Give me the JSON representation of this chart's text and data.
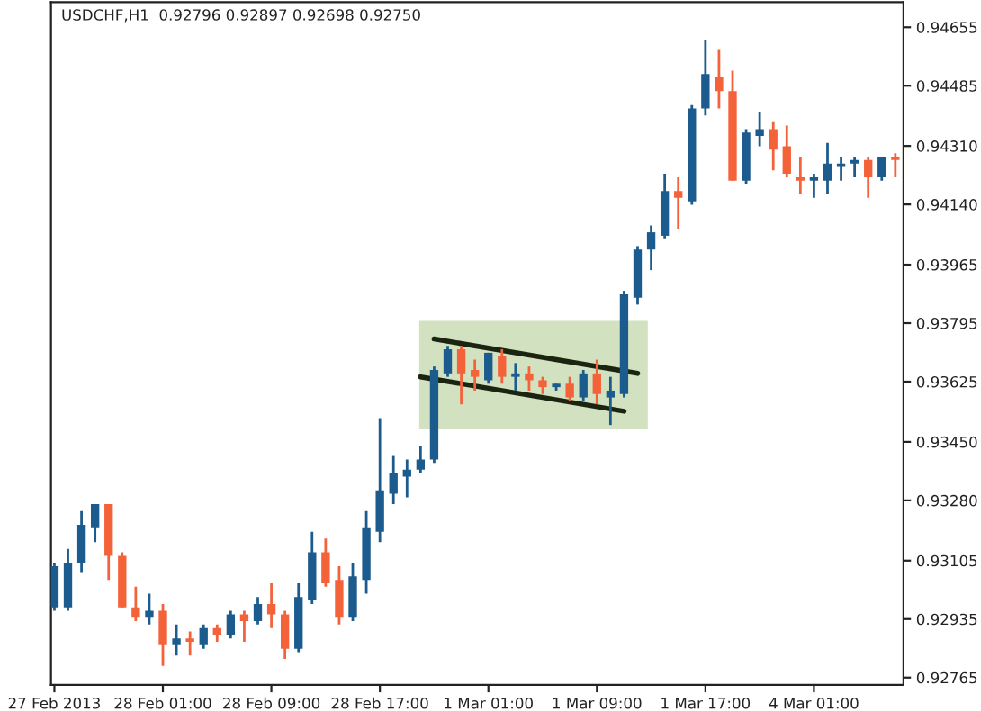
{
  "chart_data": {
    "type": "candlestick",
    "title": "USDCHF,H1  0.92796 0.92897 0.92698 0.92750",
    "categories": [
      "27 Feb 2013",
      null,
      null,
      null,
      null,
      null,
      null,
      null,
      "28 Feb 01:00",
      null,
      null,
      null,
      null,
      null,
      null,
      null,
      "28 Feb 09:00",
      null,
      null,
      null,
      null,
      null,
      null,
      null,
      "28 Feb 17:00",
      null,
      null,
      null,
      null,
      null,
      null,
      null,
      "1 Mar 01:00",
      null,
      null,
      null,
      null,
      null,
      null,
      null,
      "1 Mar 09:00",
      null,
      null,
      null,
      null,
      null,
      null,
      null,
      "1 Mar 17:00",
      null,
      null,
      null,
      null,
      null,
      null,
      null,
      "4 Mar 01:00",
      null,
      null,
      null,
      null,
      null,
      null
    ],
    "ohlc": [
      [
        0.92969,
        0.93099,
        0.92959,
        0.93089
      ],
      [
        0.92969,
        0.93139,
        0.92959,
        0.93099
      ],
      [
        0.93099,
        0.93249,
        0.93069,
        0.93209
      ],
      [
        0.93199,
        0.93269,
        0.93159,
        0.93269
      ],
      [
        0.93269,
        0.93269,
        0.93049,
        0.93119
      ],
      [
        0.93119,
        0.93129,
        0.92969,
        0.92969
      ],
      [
        0.92969,
        0.93029,
        0.92929,
        0.92939
      ],
      [
        0.92939,
        0.93009,
        0.92919,
        0.92959
      ],
      [
        0.92959,
        0.92979,
        0.92799,
        0.92859
      ],
      [
        0.92859,
        0.92919,
        0.92829,
        0.92879
      ],
      [
        0.92879,
        0.92899,
        0.92829,
        0.92869
      ],
      [
        0.92859,
        0.92919,
        0.92849,
        0.92909
      ],
      [
        0.92909,
        0.92919,
        0.92869,
        0.92889
      ],
      [
        0.92889,
        0.92959,
        0.92879,
        0.92949
      ],
      [
        0.92949,
        0.92959,
        0.92869,
        0.92929
      ],
      [
        0.92929,
        0.92999,
        0.92919,
        0.92979
      ],
      [
        0.92979,
        0.93039,
        0.92909,
        0.92949
      ],
      [
        0.92949,
        0.92959,
        0.92819,
        0.92849
      ],
      [
        0.92849,
        0.93039,
        0.92839,
        0.92999
      ],
      [
        0.92989,
        0.93189,
        0.92979,
        0.93129
      ],
      [
        0.93129,
        0.93169,
        0.93029,
        0.93039
      ],
      [
        0.93049,
        0.93089,
        0.92919,
        0.92939
      ],
      [
        0.92939,
        0.93099,
        0.92929,
        0.93059
      ],
      [
        0.93049,
        0.93249,
        0.93009,
        0.93199
      ],
      [
        0.93189,
        0.93519,
        0.93159,
        0.93309
      ],
      [
        0.93299,
        0.93409,
        0.93269,
        0.93359
      ],
      [
        0.93349,
        0.93399,
        0.93289,
        0.93369
      ],
      [
        0.93369,
        0.93439,
        0.93359,
        0.93399
      ],
      [
        0.93399,
        0.93669,
        0.93389,
        0.93659
      ],
      [
        0.93649,
        0.93729,
        0.93639,
        0.93719
      ],
      [
        0.93719,
        0.93729,
        0.93559,
        0.93649
      ],
      [
        0.93659,
        0.93689,
        0.93599,
        0.93639
      ],
      [
        0.93629,
        0.93709,
        0.93619,
        0.93709
      ],
      [
        0.93699,
        0.93719,
        0.93619,
        0.93639
      ],
      [
        0.93639,
        0.93679,
        0.93599,
        0.93649
      ],
      [
        0.93649,
        0.93669,
        0.93599,
        0.93629
      ],
      [
        0.93629,
        0.93639,
        0.93589,
        0.93609
      ],
      [
        0.93609,
        0.93619,
        0.93599,
        0.93619
      ],
      [
        0.93619,
        0.93639,
        0.93569,
        0.93579
      ],
      [
        0.93579,
        0.93659,
        0.93569,
        0.93649
      ],
      [
        0.93649,
        0.93689,
        0.93559,
        0.93589
      ],
      [
        0.93579,
        0.93639,
        0.93499,
        0.93599
      ],
      [
        0.93589,
        0.93889,
        0.93579,
        0.93879
      ],
      [
        0.93869,
        0.94019,
        0.93849,
        0.94009
      ],
      [
        0.94009,
        0.94079,
        0.93949,
        0.94059
      ],
      [
        0.94049,
        0.94229,
        0.94039,
        0.94179
      ],
      [
        0.94179,
        0.94219,
        0.94069,
        0.94159
      ],
      [
        0.94149,
        0.94429,
        0.94139,
        0.94419
      ],
      [
        0.94419,
        0.94619,
        0.94399,
        0.94519
      ],
      [
        0.94509,
        0.94589,
        0.94419,
        0.94469
      ],
      [
        0.94469,
        0.94529,
        0.94209,
        0.94209
      ],
      [
        0.94209,
        0.94359,
        0.94199,
        0.94349
      ],
      [
        0.94339,
        0.94409,
        0.94309,
        0.94359
      ],
      [
        0.94359,
        0.94379,
        0.94239,
        0.94299
      ],
      [
        0.94309,
        0.94369,
        0.94219,
        0.94229
      ],
      [
        0.94219,
        0.94279,
        0.94169,
        0.94209
      ],
      [
        0.94209,
        0.94229,
        0.94159,
        0.94219
      ],
      [
        0.94209,
        0.94319,
        0.94169,
        0.94259
      ],
      [
        0.94249,
        0.94279,
        0.94209,
        0.94259
      ],
      [
        0.94259,
        0.94279,
        0.94219,
        0.94269
      ],
      [
        0.94269,
        0.94279,
        0.94159,
        0.94219
      ],
      [
        0.94219,
        0.94279,
        0.94209,
        0.94279
      ],
      [
        0.94279,
        0.94289,
        0.94219,
        0.94269
      ]
    ],
    "colors": [
      "#1b5b8e",
      "#1b5b8e",
      "#1b5b8e",
      "#1b5b8e",
      "#f4623a",
      "#f4623a",
      "#f4623a",
      "#1b5b8e",
      "#f4623a",
      "#1b5b8e",
      "#f4623a",
      "#1b5b8e",
      "#f4623a",
      "#1b5b8e",
      "#f4623a",
      "#1b5b8e",
      "#f4623a",
      "#f4623a",
      "#1b5b8e",
      "#1b5b8e",
      "#f4623a",
      "#f4623a",
      "#1b5b8e",
      "#1b5b8e",
      "#1b5b8e",
      "#1b5b8e",
      "#1b5b8e",
      "#1b5b8e",
      "#1b5b8e",
      "#1b5b8e",
      "#f4623a",
      "#f4623a",
      "#1b5b8e",
      "#f4623a",
      "#1b5b8e",
      "#f4623a",
      "#f4623a",
      "#1b5b8e",
      "#f4623a",
      "#1b5b8e",
      "#f4623a",
      "#1b5b8e",
      "#1b5b8e",
      "#1b5b8e",
      "#1b5b8e",
      "#1b5b8e",
      "#f4623a",
      "#1b5b8e",
      "#1b5b8e",
      "#f4623a",
      "#f4623a",
      "#1b5b8e",
      "#1b5b8e",
      "#f4623a",
      "#f4623a",
      "#f4623a",
      "#1b5b8e",
      "#1b5b8e",
      "#1b5b8e",
      "#1b5b8e",
      "#f4623a",
      "#1b5b8e",
      "#f4623a"
    ],
    "series": [
      {
        "type": "line",
        "color": "#1a2410",
        "values": [
          null,
          null,
          null,
          null,
          null,
          null,
          null,
          null,
          null,
          null,
          null,
          null,
          null,
          null,
          null,
          null,
          null,
          null,
          null,
          null,
          null,
          null,
          null,
          null,
          null,
          null,
          null,
          null,
          0.93749,
          null,
          null,
          null,
          null,
          null,
          null,
          null,
          null,
          null,
          null,
          null,
          null,
          null,
          null,
          0.93649,
          null,
          null,
          null,
          null,
          null,
          null,
          null,
          null,
          null,
          null,
          null,
          null,
          null,
          null,
          null,
          null,
          null,
          null,
          null
        ]
      },
      {
        "type": "line",
        "color": "#1a2410",
        "values": [
          null,
          null,
          null,
          null,
          null,
          null,
          null,
          null,
          null,
          null,
          null,
          null,
          null,
          null,
          null,
          null,
          null,
          null,
          null,
          null,
          null,
          null,
          null,
          null,
          null,
          null,
          null,
          0.93639,
          null,
          null,
          null,
          null,
          null,
          null,
          null,
          null,
          null,
          null,
          null,
          null,
          null,
          null,
          0.93539,
          null,
          null,
          null,
          null,
          null,
          null,
          null,
          null,
          null,
          null,
          null,
          null,
          null,
          null,
          null,
          null,
          null,
          null,
          null,
          null
        ]
      }
    ],
    "ylim": [
      0.92744,
      0.94728
    ],
    "yticks": [
      0.94655,
      0.94485,
      {
        "value": 0.9431,
        "label": "0.94310"
      },
      {
        "value": 0.9414,
        "label": "0.94140"
      },
      0.93965,
      0.93795,
      0.93625,
      {
        "value": 0.9345,
        "label": "0.93450"
      },
      {
        "value": 0.9328,
        "label": "0.93280"
      },
      0.93105,
      0.92935,
      0.92765
    ]
  }
}
